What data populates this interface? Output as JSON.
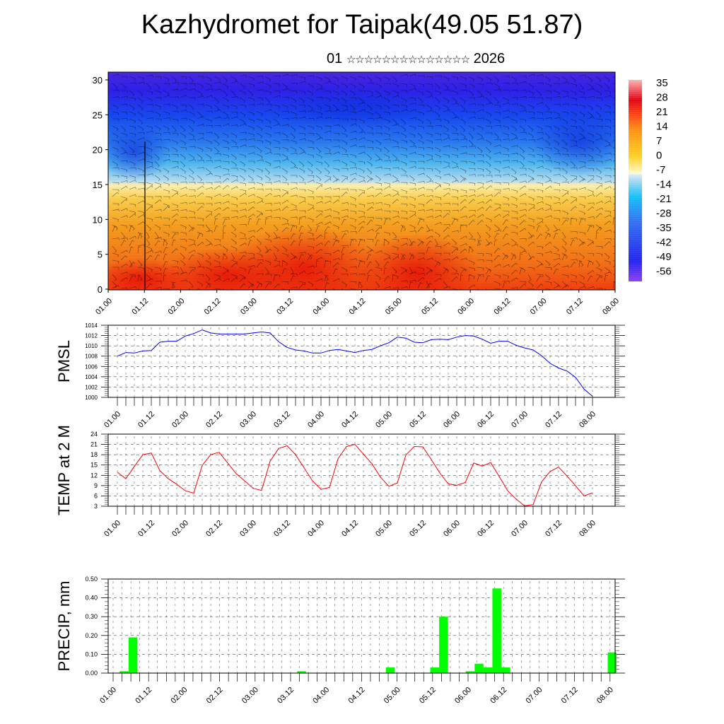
{
  "title": "Kazhydromet for Taipak(49.05 51.87)",
  "subtitle": {
    "day": "01",
    "stars": "☆☆☆☆☆☆☆☆☆☆☆☆☆☆",
    "year": "2026"
  },
  "time_labels": [
    "01.00",
    "01.12",
    "02.00",
    "02.12",
    "03.00",
    "03.12",
    "04.00",
    "04.12",
    "05.00",
    "05.12",
    "06.00",
    "06.12",
    "07.00",
    "07.12",
    "08.00"
  ],
  "chart_data": [
    {
      "type": "heatmap",
      "name": "temperature-height cross-section with wind",
      "ylim": [
        0,
        30
      ],
      "yticks": [
        "0",
        "5",
        "10",
        "15",
        "20",
        "25",
        "30"
      ],
      "colorbar": {
        "labels": [
          "35",
          "28",
          "21",
          "14",
          "7",
          "0",
          "-7",
          "-14",
          "-21",
          "-28",
          "-35",
          "-42",
          "-49",
          "-56"
        ],
        "range": [
          -60,
          38
        ]
      }
    },
    {
      "type": "line",
      "ylabel": "PMSL",
      "ylim": [
        1000,
        1014
      ],
      "yticks": [
        "1000",
        "1002",
        "1004",
        "1006",
        "1008",
        "1010",
        "1012",
        "1014"
      ],
      "color": "#0000ff",
      "values": [
        1008.0,
        1008.7,
        1008.6,
        1009.0,
        1009.1,
        1010.7,
        1010.9,
        1010.9,
        1011.9,
        1012.4,
        1013.1,
        1012.5,
        1012.3,
        1012.3,
        1012.3,
        1012.3,
        1012.5,
        1012.7,
        1012.5,
        1010.8,
        1009.7,
        1009.2,
        1009.0,
        1008.6,
        1008.6,
        1009.1,
        1009.3,
        1009.0,
        1008.7,
        1009.1,
        1009.3,
        1010.0,
        1010.6,
        1011.7,
        1011.5,
        1010.7,
        1010.6,
        1011.2,
        1011.3,
        1011.2,
        1011.7,
        1012.0,
        1011.9,
        1011.3,
        1010.5,
        1010.9,
        1010.9,
        1010.1,
        1009.6,
        1009.2,
        1008.1,
        1006.6,
        1005.7,
        1005.1,
        1003.9,
        1001.6,
        1000.2
      ]
    },
    {
      "type": "line",
      "ylabel": "TEMP at 2 M",
      "ylim": [
        3,
        24
      ],
      "yticks": [
        "3",
        "6",
        "9",
        "12",
        "15",
        "18",
        "21",
        "24"
      ],
      "color": "#ff0000",
      "values": [
        12.9,
        11.0,
        14.6,
        18.0,
        18.5,
        13.4,
        11.0,
        9.4,
        7.5,
        6.8,
        14.9,
        18.0,
        18.7,
        15.6,
        12.5,
        10.4,
        8.2,
        7.6,
        16.1,
        19.8,
        20.6,
        18.0,
        14.2,
        10.4,
        7.9,
        8.5,
        16.8,
        20.4,
        21.0,
        18.2,
        15.4,
        11.5,
        8.8,
        9.8,
        17.9,
        20.4,
        20.3,
        16.6,
        12.7,
        9.5,
        9.1,
        9.9,
        15.6,
        14.7,
        15.7,
        11.7,
        7.5,
        5.1,
        3.1,
        3.5,
        10.1,
        13.1,
        14.4,
        11.8,
        9.0,
        6.0,
        6.9
      ]
    },
    {
      "type": "bar",
      "ylabel": "PRECIP, mm",
      "ylim": [
        0,
        0.5
      ],
      "yticks": [
        "0.00",
        "0.10",
        "0.20",
        "0.30",
        "0.40",
        "0.50"
      ],
      "color": "#00ff00",
      "values": [
        0,
        0.01,
        0.19,
        0,
        0,
        0,
        0,
        0,
        0,
        0,
        0,
        0,
        0,
        0,
        0,
        0,
        0,
        0,
        0,
        0,
        0,
        0.01,
        0,
        0,
        0,
        0,
        0,
        0,
        0,
        0,
        0,
        0.03,
        0,
        0,
        0,
        0,
        0.03,
        0.3,
        0,
        0,
        0.01,
        0.05,
        0.03,
        0.45,
        0.03,
        0,
        0,
        0,
        0,
        0,
        0,
        0,
        0,
        0,
        0,
        0,
        0.11
      ]
    }
  ]
}
